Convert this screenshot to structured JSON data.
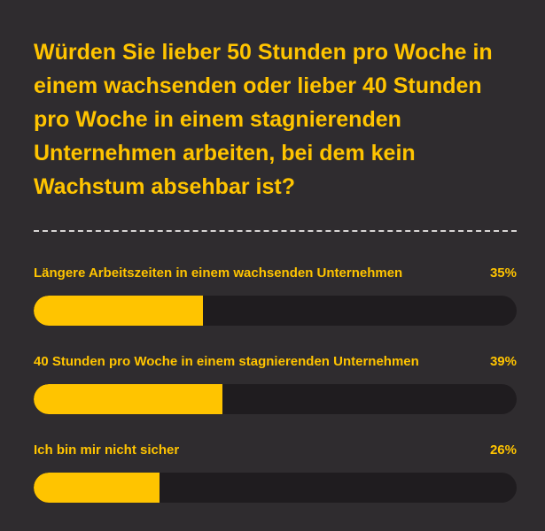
{
  "chart_data": {
    "type": "bar",
    "title": "Würden Sie lieber 50 Stunden pro Woche in einem wachsenden oder lieber 40 Stunden pro Woche in einem stagnierenden Unternehmen arbeiten, bei dem kein Wachstum absehbar ist?",
    "categories": [
      "Längere Arbeitszeiten in einem wachsenden Unternehmen",
      "40 Stunden pro Woche in einem stagnierenden Unternehmen",
      "Ich bin mir nicht sicher"
    ],
    "values": [
      35,
      39,
      26
    ],
    "value_labels": [
      "35%",
      "39%",
      "26%"
    ],
    "xlim": [
      0,
      100
    ],
    "orientation": "horizontal",
    "colors": {
      "background": "#2f2c2f",
      "accent": "#ffc400",
      "track": "#1f1c1f",
      "divider": "#d9d6d6"
    }
  }
}
